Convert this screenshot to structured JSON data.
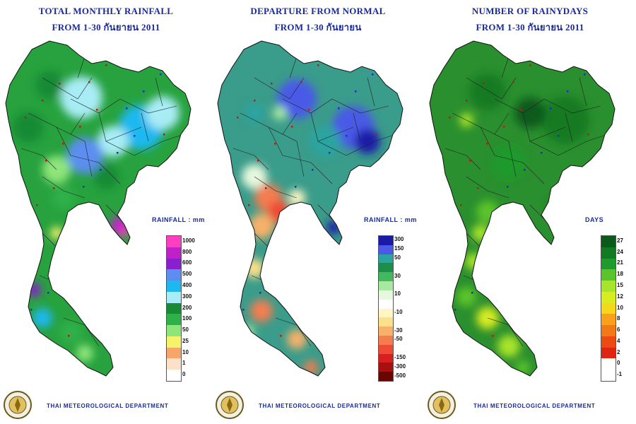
{
  "panels": [
    {
      "title": "TOTAL MONTHLY RAINFALL",
      "subtitle": "FROM 1-30 กันยายน 2011",
      "unit_label": "RAINFALL : mm",
      "legend": [
        {
          "label": "1000",
          "color": "#ff3fbf"
        },
        {
          "label": "800",
          "color": "#c020c8"
        },
        {
          "label": "600",
          "color": "#8a1fd0"
        },
        {
          "label": "500",
          "color": "#5b8ef0"
        },
        {
          "label": "400",
          "color": "#1eb8f0"
        },
        {
          "label": "300",
          "color": "#a8ecf5"
        },
        {
          "label": "200",
          "color": "#178a35"
        },
        {
          "label": "100",
          "color": "#2fb14a"
        },
        {
          "label": "50",
          "color": "#8ee57a"
        },
        {
          "label": "25",
          "color": "#f5f36a"
        },
        {
          "label": "10",
          "color": "#f7a56a"
        },
        {
          "label": "1",
          "color": "#fde0c8"
        },
        {
          "label": "0",
          "color": "#ffffff"
        }
      ],
      "footer": "THAI METEOROLOGICAL DEPARTMENT",
      "base_color": "#27a23e"
    },
    {
      "title": "DEPARTURE FROM NORMAL",
      "subtitle": "FROM 1-30 กันยายน",
      "unit_label": "RAINFALL : mm",
      "legend": [
        {
          "label": "300",
          "color": "#1a1aa8"
        },
        {
          "label": "150",
          "color": "#4a5ae6"
        },
        {
          "label": "50",
          "color": "#2aa4a0"
        },
        {
          "label": "",
          "color": "#1d8e4a"
        },
        {
          "label": "30",
          "color": "#43b85e"
        },
        {
          "label": "",
          "color": "#a9e8a0"
        },
        {
          "label": "10",
          "color": "#e6f8dd"
        },
        {
          "label": "",
          "color": "#ffffff"
        },
        {
          "label": "-10",
          "color": "#fff6c4"
        },
        {
          "label": "",
          "color": "#fde08a"
        },
        {
          "label": "-30",
          "color": "#f8b16a"
        },
        {
          "label": "-50",
          "color": "#f47d4f"
        },
        {
          "label": "",
          "color": "#ef4a35"
        },
        {
          "label": "-150",
          "color": "#d81f1f"
        },
        {
          "label": "-300",
          "color": "#a80f0f"
        },
        {
          "label": "-500",
          "color": "#6a0505"
        }
      ],
      "footer": "THAI METEOROLOGICAL DEPARTMENT",
      "base_color": "#3a9c8a"
    },
    {
      "title": "NUMBER OF RAINYDAYS",
      "subtitle": "FROM 1-30 กันยายน 2011",
      "unit_label": "DAYS",
      "legend": [
        {
          "label": "27",
          "color": "#0b5a1a"
        },
        {
          "label": "24",
          "color": "#137a24"
        },
        {
          "label": "21",
          "color": "#1f9a2c"
        },
        {
          "label": "18",
          "color": "#5cc42a"
        },
        {
          "label": "15",
          "color": "#a8e42a"
        },
        {
          "label": "12",
          "color": "#d8ec20"
        },
        {
          "label": "10",
          "color": "#f6d81a"
        },
        {
          "label": "8",
          "color": "#f7a21a"
        },
        {
          "label": "6",
          "color": "#f27a16"
        },
        {
          "label": "4",
          "color": "#ec4a12"
        },
        {
          "label": "2",
          "color": "#e02412"
        },
        {
          "label": "0",
          "color": "#ffffff"
        },
        {
          "label": "-1",
          "color": "#ffffff"
        }
      ],
      "footer": "THAI METEOROLOGICAL DEPARTMENT",
      "base_color": "#2a8f2e"
    }
  ]
}
